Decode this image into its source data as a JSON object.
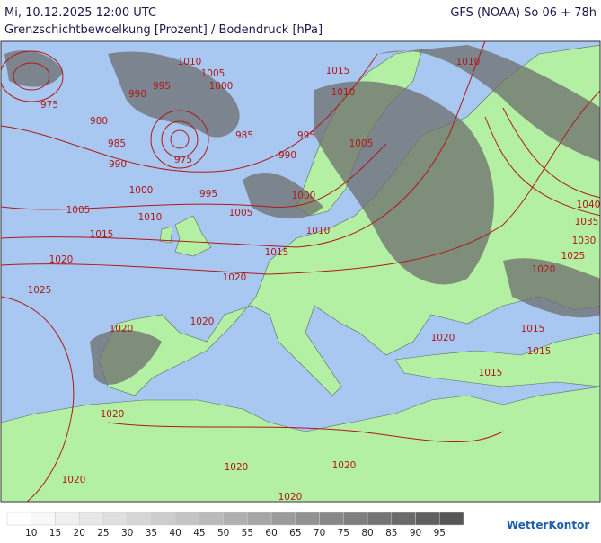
{
  "header": {
    "datetime": "Mi, 10.12.2025 12:00 UTC",
    "model": "GFS (NOAA) So 06 + 78h",
    "subtitle": "Grenzschichtbewoelkung [Prozent] / Bodendruck [hPa]"
  },
  "isobar_labels": [
    "1010",
    "1005",
    "995",
    "1000",
    "990",
    "975",
    "980",
    "985",
    "990",
    "975",
    "985",
    "995",
    "990",
    "1005",
    "1015",
    "1010",
    "1010",
    "1000",
    "995",
    "1000",
    "1005",
    "1010",
    "1005",
    "1010",
    "1015",
    "1015",
    "1020",
    "1020",
    "1025",
    "1020",
    "1020",
    "1020",
    "1025",
    "1030",
    "1035",
    "1040",
    "1020",
    "1015",
    "1015",
    "1015",
    "1020",
    "1020",
    "1020",
    "1020",
    "1020"
  ],
  "legend": {
    "ticks": [
      10,
      15,
      20,
      25,
      30,
      35,
      40,
      45,
      50,
      55,
      60,
      65,
      70,
      75,
      80,
      85,
      90,
      95
    ],
    "colors": [
      "#ffffff",
      "#f7f7f7",
      "#efefef",
      "#e7e7e7",
      "#dfdfdf",
      "#d6d6d6",
      "#cdcdcd",
      "#c4c4c4",
      "#bababa",
      "#b0b0b0",
      "#a6a6a6",
      "#9c9c9c",
      "#929292",
      "#888888",
      "#7e7e7e",
      "#747474",
      "#6a6a6a",
      "#606060",
      "#565656"
    ]
  },
  "brand": "WetterKontor"
}
